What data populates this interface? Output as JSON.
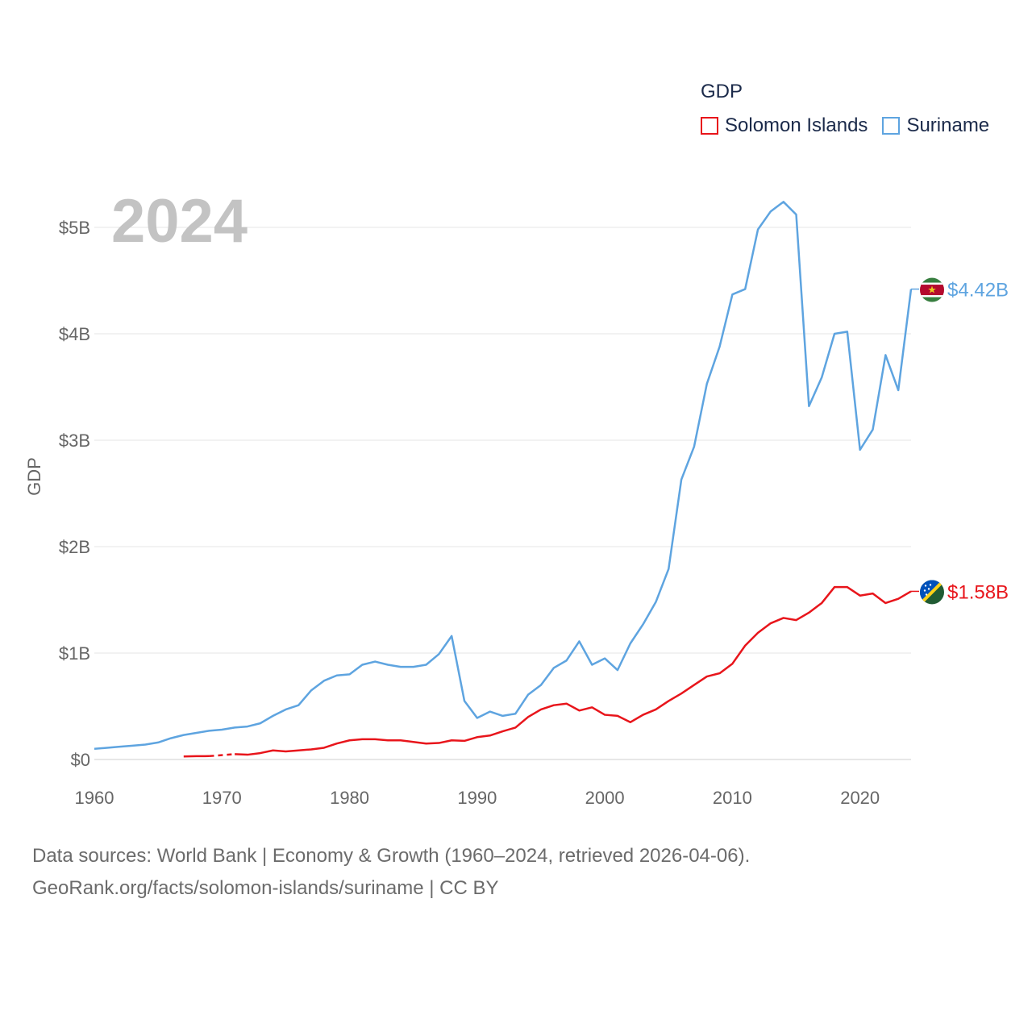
{
  "chart_data": {
    "type": "line",
    "title": "GDP",
    "year_label": "2024",
    "xlabel": "",
    "ylabel": "GDP",
    "xlim": [
      1960,
      2024
    ],
    "ylim": [
      0,
      5000000000
    ],
    "x_ticks": [
      1960,
      1970,
      1980,
      1990,
      2000,
      2010,
      2020
    ],
    "y_ticks": [
      {
        "value": 0,
        "label": "$0"
      },
      {
        "value": 1000000000,
        "label": "$1B"
      },
      {
        "value": 2000000000,
        "label": "$2B"
      },
      {
        "value": 3000000000,
        "label": "$3B"
      },
      {
        "value": 4000000000,
        "label": "$4B"
      },
      {
        "value": 5000000000,
        "label": "$5B"
      }
    ],
    "series": [
      {
        "name": "Solomon Islands",
        "color": "#e8151b",
        "end_label": "$1.58B",
        "flag": "solomon-islands-flag-icon",
        "x": [
          1967,
          1968,
          1969,
          1971,
          1972,
          1973,
          1974,
          1975,
          1976,
          1977,
          1978,
          1979,
          1980,
          1981,
          1982,
          1983,
          1984,
          1985,
          1986,
          1987,
          1988,
          1989,
          1990,
          1991,
          1992,
          1993,
          1994,
          1995,
          1996,
          1997,
          1998,
          1999,
          2000,
          2001,
          2002,
          2003,
          2004,
          2005,
          2006,
          2007,
          2008,
          2009,
          2010,
          2011,
          2012,
          2013,
          2014,
          2015,
          2016,
          2017,
          2018,
          2019,
          2020,
          2021,
          2022,
          2023,
          2024
        ],
        "values": [
          0.028,
          0.031,
          0.032,
          0.05,
          0.045,
          0.06,
          0.085,
          0.076,
          0.085,
          0.095,
          0.11,
          0.15,
          0.18,
          0.19,
          0.19,
          0.18,
          0.18,
          0.165,
          0.15,
          0.155,
          0.18,
          0.175,
          0.21,
          0.225,
          0.265,
          0.3,
          0.4,
          0.47,
          0.51,
          0.525,
          0.46,
          0.49,
          0.42,
          0.41,
          0.35,
          0.42,
          0.47,
          0.55,
          0.62,
          0.7,
          0.78,
          0.81,
          0.9,
          1.07,
          1.19,
          1.28,
          1.33,
          1.31,
          1.38,
          1.47,
          1.62,
          1.62,
          1.54,
          1.56,
          1.47,
          1.51,
          1.58
        ],
        "unit_note": "values in billions USD"
      },
      {
        "name": "Suriname",
        "color": "#5ea4e0",
        "end_label": "$4.42B",
        "flag": "suriname-flag-icon",
        "x": [
          1960,
          1961,
          1962,
          1963,
          1964,
          1965,
          1966,
          1967,
          1968,
          1969,
          1970,
          1971,
          1972,
          1973,
          1974,
          1975,
          1976,
          1977,
          1978,
          1979,
          1980,
          1981,
          1982,
          1983,
          1984,
          1985,
          1986,
          1987,
          1988,
          1989,
          1990,
          1991,
          1992,
          1993,
          1994,
          1995,
          1996,
          1997,
          1998,
          1999,
          2000,
          2001,
          2002,
          2003,
          2004,
          2005,
          2006,
          2007,
          2008,
          2009,
          2010,
          2011,
          2012,
          2013,
          2014,
          2015,
          2016,
          2017,
          2018,
          2019,
          2020,
          2021,
          2022,
          2023,
          2024
        ],
        "values": [
          0.1,
          0.11,
          0.12,
          0.13,
          0.14,
          0.16,
          0.2,
          0.23,
          0.25,
          0.27,
          0.28,
          0.3,
          0.31,
          0.34,
          0.41,
          0.47,
          0.51,
          0.65,
          0.74,
          0.79,
          0.8,
          0.89,
          0.92,
          0.89,
          0.87,
          0.87,
          0.89,
          0.99,
          1.16,
          0.55,
          0.39,
          0.45,
          0.41,
          0.43,
          0.61,
          0.7,
          0.86,
          0.93,
          1.11,
          0.89,
          0.95,
          0.84,
          1.09,
          1.27,
          1.48,
          1.79,
          2.63,
          2.94,
          3.53,
          3.88,
          4.37,
          4.42,
          4.98,
          5.15,
          5.24,
          5.12,
          3.32,
          3.59,
          4.0,
          4.02,
          2.91,
          3.1,
          3.8,
          3.47,
          4.42
        ],
        "unit_note": "values in billions USD"
      }
    ]
  },
  "legend": {
    "title": "GDP",
    "items": [
      {
        "label": "Solomon Islands",
        "color": "#e8151b"
      },
      {
        "label": "Suriname",
        "color": "#5ea4e0"
      }
    ]
  },
  "footer": {
    "line1": "Data sources: World Bank | Economy & Growth (1960–2024, retrieved 2026-04-06).",
    "line2": "GeoRank.org/facts/solomon-islands/suriname | CC BY"
  }
}
